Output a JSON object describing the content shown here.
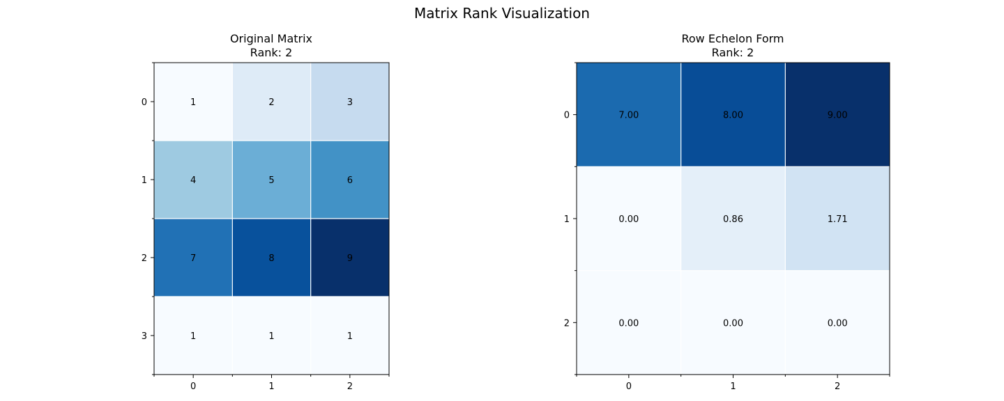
{
  "figure": {
    "title": "Matrix Rank Visualization"
  },
  "chart_data": [
    {
      "type": "heatmap",
      "title": "Original Matrix",
      "subtitle": "Rank: 2",
      "colormap": "Blues",
      "rows": [
        0,
        1,
        2,
        3
      ],
      "cols": [
        0,
        1,
        2
      ],
      "values": [
        [
          1,
          2,
          3
        ],
        [
          4,
          5,
          6
        ],
        [
          7,
          8,
          9
        ],
        [
          1,
          1,
          1
        ]
      ],
      "labels": [
        [
          "1",
          "2",
          "3"
        ],
        [
          "4",
          "5",
          "6"
        ],
        [
          "7",
          "8",
          "9"
        ],
        [
          "1",
          "1",
          "1"
        ]
      ],
      "vmin": 1,
      "vmax": 9,
      "grid": true,
      "grid_color": "#ffffff"
    },
    {
      "type": "heatmap",
      "title": "Row Echelon Form",
      "subtitle": "Rank: 2",
      "colormap": "Blues",
      "rows": [
        0,
        1,
        2
      ],
      "cols": [
        0,
        1,
        2
      ],
      "values": [
        [
          7.0,
          8.0,
          9.0
        ],
        [
          0.0,
          0.857,
          1.714
        ],
        [
          0.0,
          0.0,
          0.0
        ]
      ],
      "labels": [
        [
          "7.00",
          "8.00",
          "9.00"
        ],
        [
          "0.00",
          "0.86",
          "1.71"
        ],
        [
          "0.00",
          "0.00",
          "0.00"
        ]
      ],
      "vmin": 0,
      "vmax": 9,
      "grid": true,
      "grid_color": "#ffffff"
    }
  ]
}
